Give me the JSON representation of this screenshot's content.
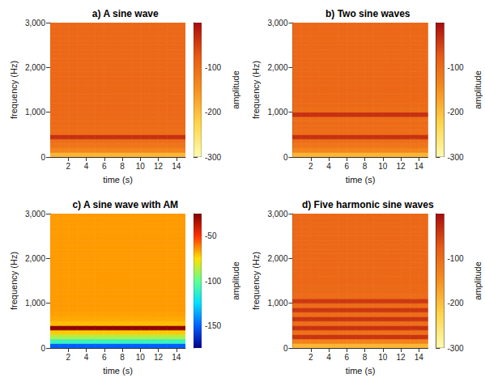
{
  "chart_data": [
    {
      "type": "heatmap",
      "title": "a) A sine wave",
      "color": "hot",
      "xlabel": "time (s)",
      "ylabel": "frequency (Hz)",
      "zlabel": "amplitude",
      "xlim": [
        0,
        15
      ],
      "xticks": [
        2,
        4,
        6,
        8,
        10,
        12,
        14
      ],
      "ylim": [
        0,
        3000
      ],
      "yticks": [
        0,
        1000,
        2000,
        3000
      ],
      "times": [
        0,
        1,
        2,
        3,
        4,
        5,
        6,
        7,
        8,
        9,
        10,
        11,
        12,
        13,
        14
      ],
      "frequencies": [
        0,
        100,
        200,
        300,
        400,
        500,
        600,
        700,
        800,
        900,
        1000,
        1100,
        1200,
        1300,
        1400,
        1500,
        1600,
        1700,
        1800,
        1900,
        2000,
        2100,
        2200,
        2300,
        2400,
        2500,
        2600,
        2700,
        2800,
        2900
      ],
      "amplitude": [
        -190,
        -135,
        -112,
        -104,
        -35,
        -103,
        -99,
        -97,
        -96,
        -96,
        -95,
        -95,
        -95,
        -95,
        -95,
        -95,
        -95,
        -95,
        -95,
        -95,
        -95,
        -95,
        -95,
        -95,
        -95,
        -95,
        -95,
        -95,
        -95,
        -95
      ],
      "color_range": [
        -300,
        0
      ],
      "color_ticks": [
        -300,
        -200,
        -100
      ]
    },
    {
      "type": "heatmap",
      "title": "b) Two sine waves",
      "color": "hot",
      "xlabel": "time (s)",
      "ylabel": "frequency (Hz)",
      "zlabel": "amplitude",
      "xlim": [
        0,
        15
      ],
      "xticks": [
        2,
        4,
        6,
        8,
        10,
        12,
        14
      ],
      "ylim": [
        0,
        3000
      ],
      "yticks": [
        0,
        1000,
        2000,
        3000
      ],
      "times": [
        0,
        1,
        2,
        3,
        4,
        5,
        6,
        7,
        8,
        9,
        10,
        11,
        12,
        13,
        14
      ],
      "frequencies": [
        0,
        100,
        200,
        300,
        400,
        500,
        600,
        700,
        800,
        900,
        1000,
        1100,
        1200,
        1300,
        1400,
        1500,
        1600,
        1700,
        1800,
        1900,
        2000,
        2100,
        2200,
        2300,
        2400,
        2500,
        2600,
        2700,
        2800,
        2900
      ],
      "amplitude": [
        -190,
        -135,
        -112,
        -104,
        -35,
        -103,
        -99,
        -98,
        -102,
        -35,
        -101,
        -97,
        -96,
        -95,
        -95,
        -95,
        -95,
        -95,
        -95,
        -95,
        -95,
        -95,
        -95,
        -95,
        -95,
        -95,
        -95,
        -95,
        -95,
        -95
      ],
      "color_range": [
        -300,
        0
      ],
      "color_ticks": [
        -300,
        -200,
        -100
      ]
    },
    {
      "type": "heatmap",
      "title": "c) A sine wave with AM",
      "color": "jet",
      "xlabel": "time (s)",
      "ylabel": "frequency (Hz)",
      "zlabel": "amplitude",
      "xlim": [
        0,
        15
      ],
      "xticks": [
        2,
        4,
        6,
        8,
        10,
        12,
        14
      ],
      "ylim": [
        0,
        3000
      ],
      "yticks": [
        0,
        1000,
        2000,
        3000
      ],
      "times": [
        0,
        1,
        2,
        3,
        4,
        5,
        6,
        7,
        8,
        9,
        10,
        11,
        12,
        13,
        14
      ],
      "frequencies": [
        0,
        100,
        200,
        300,
        400,
        500,
        600,
        700,
        800,
        900,
        1000,
        1100,
        1200,
        1300,
        1400,
        1500,
        1600,
        1700,
        1800,
        1900,
        2000,
        2100,
        2200,
        2300,
        2400,
        2500,
        2600,
        2700,
        2800,
        2900
      ],
      "amplitude": [
        -150,
        -110,
        -88,
        -72,
        -28,
        -70,
        -67,
        -66,
        -65,
        -65,
        -65,
        -65,
        -65,
        -65,
        -65,
        -65,
        -65,
        -65,
        -65,
        -65,
        -65,
        -65,
        -65,
        -65,
        -65,
        -65,
        -65,
        -65,
        -65,
        -65
      ],
      "color_range": [
        -175,
        -25
      ],
      "color_ticks": [
        -150,
        -100,
        -50
      ]
    },
    {
      "type": "heatmap",
      "title": "d) Five harmonic sine waves",
      "color": "hot",
      "xlabel": "time (s)",
      "ylabel": "frequency (Hz)",
      "zlabel": "amplitude",
      "xlim": [
        0,
        15
      ],
      "xticks": [
        2,
        4,
        6,
        8,
        10,
        12,
        14
      ],
      "ylim": [
        0,
        3000
      ],
      "yticks": [
        0,
        1000,
        2000,
        3000
      ],
      "times": [
        0,
        1,
        2,
        3,
        4,
        5,
        6,
        7,
        8,
        9,
        10,
        11,
        12,
        13,
        14
      ],
      "frequencies": [
        0,
        100,
        200,
        300,
        400,
        500,
        600,
        700,
        800,
        900,
        1000,
        1100,
        1200,
        1300,
        1400,
        1500,
        1600,
        1700,
        1800,
        1900,
        2000,
        2100,
        2200,
        2300,
        2400,
        2500,
        2600,
        2700,
        2800,
        2900
      ],
      "amplitude": [
        -190,
        -130,
        -38,
        -106,
        -36,
        -104,
        -38,
        -103,
        -40,
        -102,
        -42,
        -100,
        -97,
        -96,
        -95,
        -95,
        -95,
        -95,
        -95,
        -95,
        -95,
        -95,
        -95,
        -95,
        -95,
        -95,
        -95,
        -95,
        -95,
        -95
      ],
      "color_range": [
        -300,
        0
      ],
      "color_ticks": [
        -300,
        -200,
        -100
      ]
    }
  ]
}
